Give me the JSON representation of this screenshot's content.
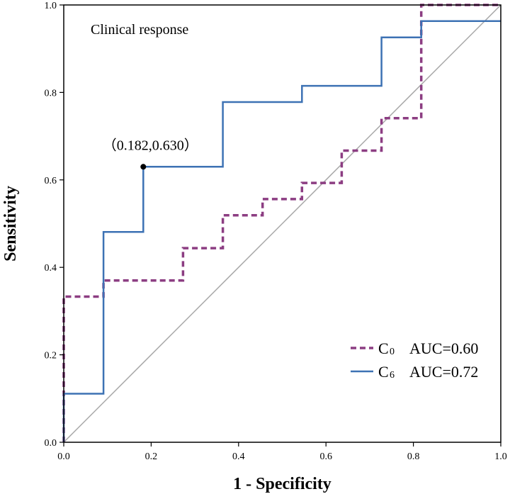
{
  "chart_data": {
    "type": "line",
    "title": "Clinical response",
    "xlabel": "1 - Specificity",
    "ylabel": "Sensitivity",
    "xlim": [
      0.0,
      1.0
    ],
    "ylim": [
      0.0,
      1.0
    ],
    "xticks": [
      0.0,
      0.2,
      0.4,
      0.6,
      0.8,
      1.0
    ],
    "yticks": [
      0.0,
      0.2,
      0.4,
      0.6,
      0.8,
      1.0
    ],
    "xtick_labels": [
      "0.0",
      "0.2",
      "0.4",
      "0.6",
      "0.8",
      "1.0"
    ],
    "ytick_labels": [
      "0.0",
      "0.2",
      "0.4",
      "0.6",
      "0.8",
      "1.0"
    ],
    "grid": false,
    "legend_position": "bottom-right",
    "reference_line": {
      "x": [
        0,
        1
      ],
      "y": [
        0,
        1
      ],
      "color": "#a6a6a6"
    },
    "series": [
      {
        "name": "C",
        "subscript": "0",
        "auc_label": "AUC=0.60",
        "style": "dashed",
        "color": "#8c3d82",
        "x": [
          0,
          0,
          0.091,
          0.091,
          0.273,
          0.273,
          0.364,
          0.364,
          0.455,
          0.455,
          0.545,
          0.545,
          0.636,
          0.636,
          0.727,
          0.727,
          0.818,
          0.818,
          1.0
        ],
        "y": [
          0,
          0.333,
          0.333,
          0.37,
          0.37,
          0.444,
          0.444,
          0.519,
          0.519,
          0.556,
          0.556,
          0.593,
          0.593,
          0.667,
          0.667,
          0.741,
          0.741,
          1.0,
          1.0
        ]
      },
      {
        "name": "C",
        "subscript": "6",
        "auc_label": "AUC=0.72",
        "style": "solid",
        "color": "#3d72b4",
        "x": [
          0,
          0,
          0.091,
          0.091,
          0.182,
          0.182,
          0.364,
          0.364,
          0.545,
          0.545,
          0.727,
          0.727,
          0.818,
          0.818,
          1.0
        ],
        "y": [
          0,
          0.111,
          0.111,
          0.481,
          0.481,
          0.63,
          0.63,
          0.778,
          0.778,
          0.815,
          0.815,
          0.926,
          0.926,
          0.963,
          0.963
        ]
      }
    ],
    "annotations": [
      {
        "text": "（0.182,0.630）",
        "x": 0.182,
        "y": 0.63
      }
    ]
  }
}
